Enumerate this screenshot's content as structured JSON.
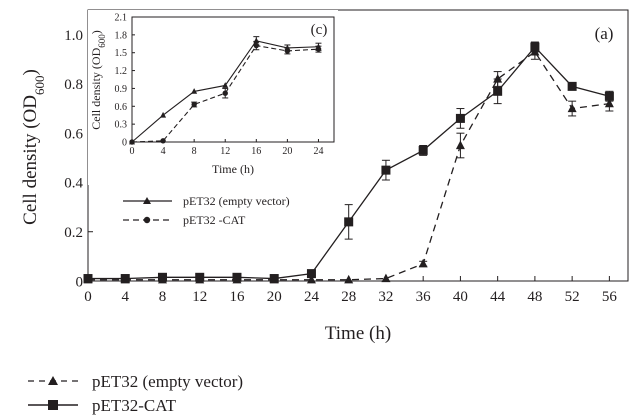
{
  "chart_data": [
    {
      "id": "main",
      "type": "line",
      "panel_label": "(a)",
      "xlabel": "Time (h)",
      "ylabel_main": "Cell density (OD",
      "ylabel_sub": "600",
      "ylabel_close": ")",
      "xlim": [
        0,
        58
      ],
      "ylim": [
        0,
        1.1
      ],
      "x_ticks": [
        "0",
        "4",
        "8",
        "12",
        "16",
        "20",
        "24",
        "28",
        "32",
        "36",
        "40",
        "44",
        "48",
        "52",
        "56"
      ],
      "y_ticks": [
        "0",
        "0.2",
        "0.4",
        "0.6",
        "0.8",
        "1.0"
      ],
      "x": [
        0,
        4,
        8,
        12,
        16,
        20,
        24,
        28,
        32,
        36,
        40,
        44,
        48,
        52,
        56
      ],
      "series": [
        {
          "name": "pET32 (empty vector)",
          "style": "dashed",
          "marker": "triangle",
          "values": [
            0.005,
            0.005,
            0.005,
            0.005,
            0.005,
            0.005,
            0.005,
            0.005,
            0.01,
            0.07,
            0.55,
            0.82,
            0.93,
            0.7,
            0.72
          ],
          "errors": [
            0,
            0,
            0,
            0,
            0,
            0,
            0,
            0,
            0,
            0.01,
            0.05,
            0.03,
            0.03,
            0.03,
            0.03
          ]
        },
        {
          "name": "pET32-CAT",
          "style": "solid",
          "marker": "square",
          "values": [
            0.01,
            0.01,
            0.015,
            0.015,
            0.015,
            0.01,
            0.03,
            0.24,
            0.45,
            0.53,
            0.66,
            0.77,
            0.95,
            0.79,
            0.75
          ],
          "errors": [
            0,
            0,
            0,
            0,
            0,
            0,
            0,
            0.07,
            0.04,
            0.02,
            0.04,
            0.05,
            0.02,
            0.01,
            0.02
          ]
        }
      ],
      "legend_inner": [
        "pET32 (empty vector)",
        "pET32 -CAT"
      ],
      "legend_placement": "upper-left"
    },
    {
      "id": "inset",
      "type": "line",
      "panel_label": "(c)",
      "xlabel": "Time (h)",
      "ylabel_main": "Cell density (OD",
      "ylabel_sub": "600",
      "ylabel_close": ")",
      "xlim": [
        0,
        26
      ],
      "ylim": [
        0,
        2.1
      ],
      "x_ticks": [
        "0",
        "4",
        "8",
        "12",
        "16",
        "20",
        "24"
      ],
      "y_ticks": [
        "0",
        "0.3",
        "0.6",
        "0.9",
        "1.2",
        "1.5",
        "1.8",
        "2.1"
      ],
      "x": [
        0,
        4,
        8,
        12,
        16,
        20,
        24
      ],
      "series": [
        {
          "name": "pET32 (empty vector)",
          "style": "solid",
          "marker": "triangle",
          "values": [
            0.0,
            0.45,
            0.85,
            0.95,
            1.7,
            1.58,
            1.6
          ],
          "errors": [
            0,
            0,
            0,
            0,
            0.07,
            0.05,
            0.06
          ]
        },
        {
          "name": "pET32-CAT",
          "style": "dashed",
          "marker": "circle",
          "values": [
            0.0,
            0.02,
            0.63,
            0.82,
            1.62,
            1.53,
            1.56
          ],
          "errors": [
            0,
            0,
            0.04,
            0.08,
            0.07,
            0.05,
            0.05
          ]
        }
      ]
    }
  ],
  "bottom_legend": [
    {
      "label": "pET32 (empty vector)",
      "style": "dashed",
      "marker": "triangle"
    },
    {
      "label": "pET32-CAT",
      "style": "solid",
      "marker": "square"
    }
  ],
  "colors": {
    "ink": "#231f20",
    "background": "#ffffff"
  }
}
